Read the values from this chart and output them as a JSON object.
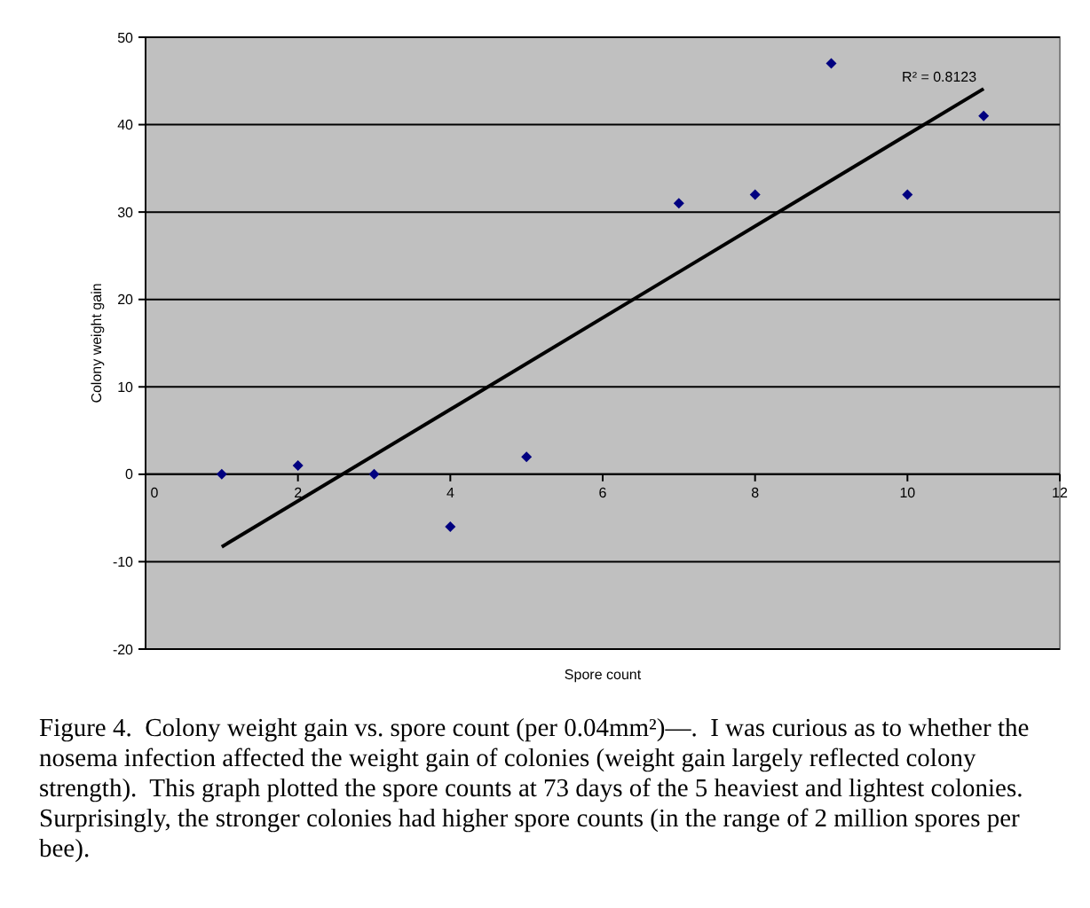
{
  "chart_data": {
    "type": "scatter",
    "xlabel": "Spore count",
    "ylabel": "Colony weight gain",
    "xlim": [
      0,
      12
    ],
    "xticks": [
      0,
      2,
      4,
      6,
      8,
      10,
      12
    ],
    "ylim": [
      -20,
      50
    ],
    "yticks": [
      -20,
      -10,
      0,
      10,
      20,
      30,
      40,
      50
    ],
    "grid": "y",
    "series": [
      {
        "marker": "diamond",
        "color": "#000080",
        "x": [
          1,
          2,
          3,
          4,
          5,
          7,
          8,
          9,
          10,
          11
        ],
        "values": [
          0,
          1,
          0,
          -6,
          2,
          31,
          32,
          47,
          32,
          41
        ]
      },
      {
        "type": "line",
        "color": "#000000",
        "x": [
          1,
          11
        ],
        "values": [
          -8.3,
          44.1
        ],
        "line_style": "solid"
      }
    ],
    "annotations": [
      {
        "text": "R² = 0.8123",
        "x": 11,
        "y": 44.1
      },
      "Figure 4.  Colony weight gain vs. spore count (per 0.04mm²)—.  I was curious as to whether the nosema infection affected the weight gain of colonies (weight gain largely reflected colony strength).  This graph plotted the spore counts at 73 days of the 5 heaviest and lightest colonies. Surprisingly, the stronger colonies had higher spore counts (in the range of 2 million spores per bee)."
    ]
  }
}
